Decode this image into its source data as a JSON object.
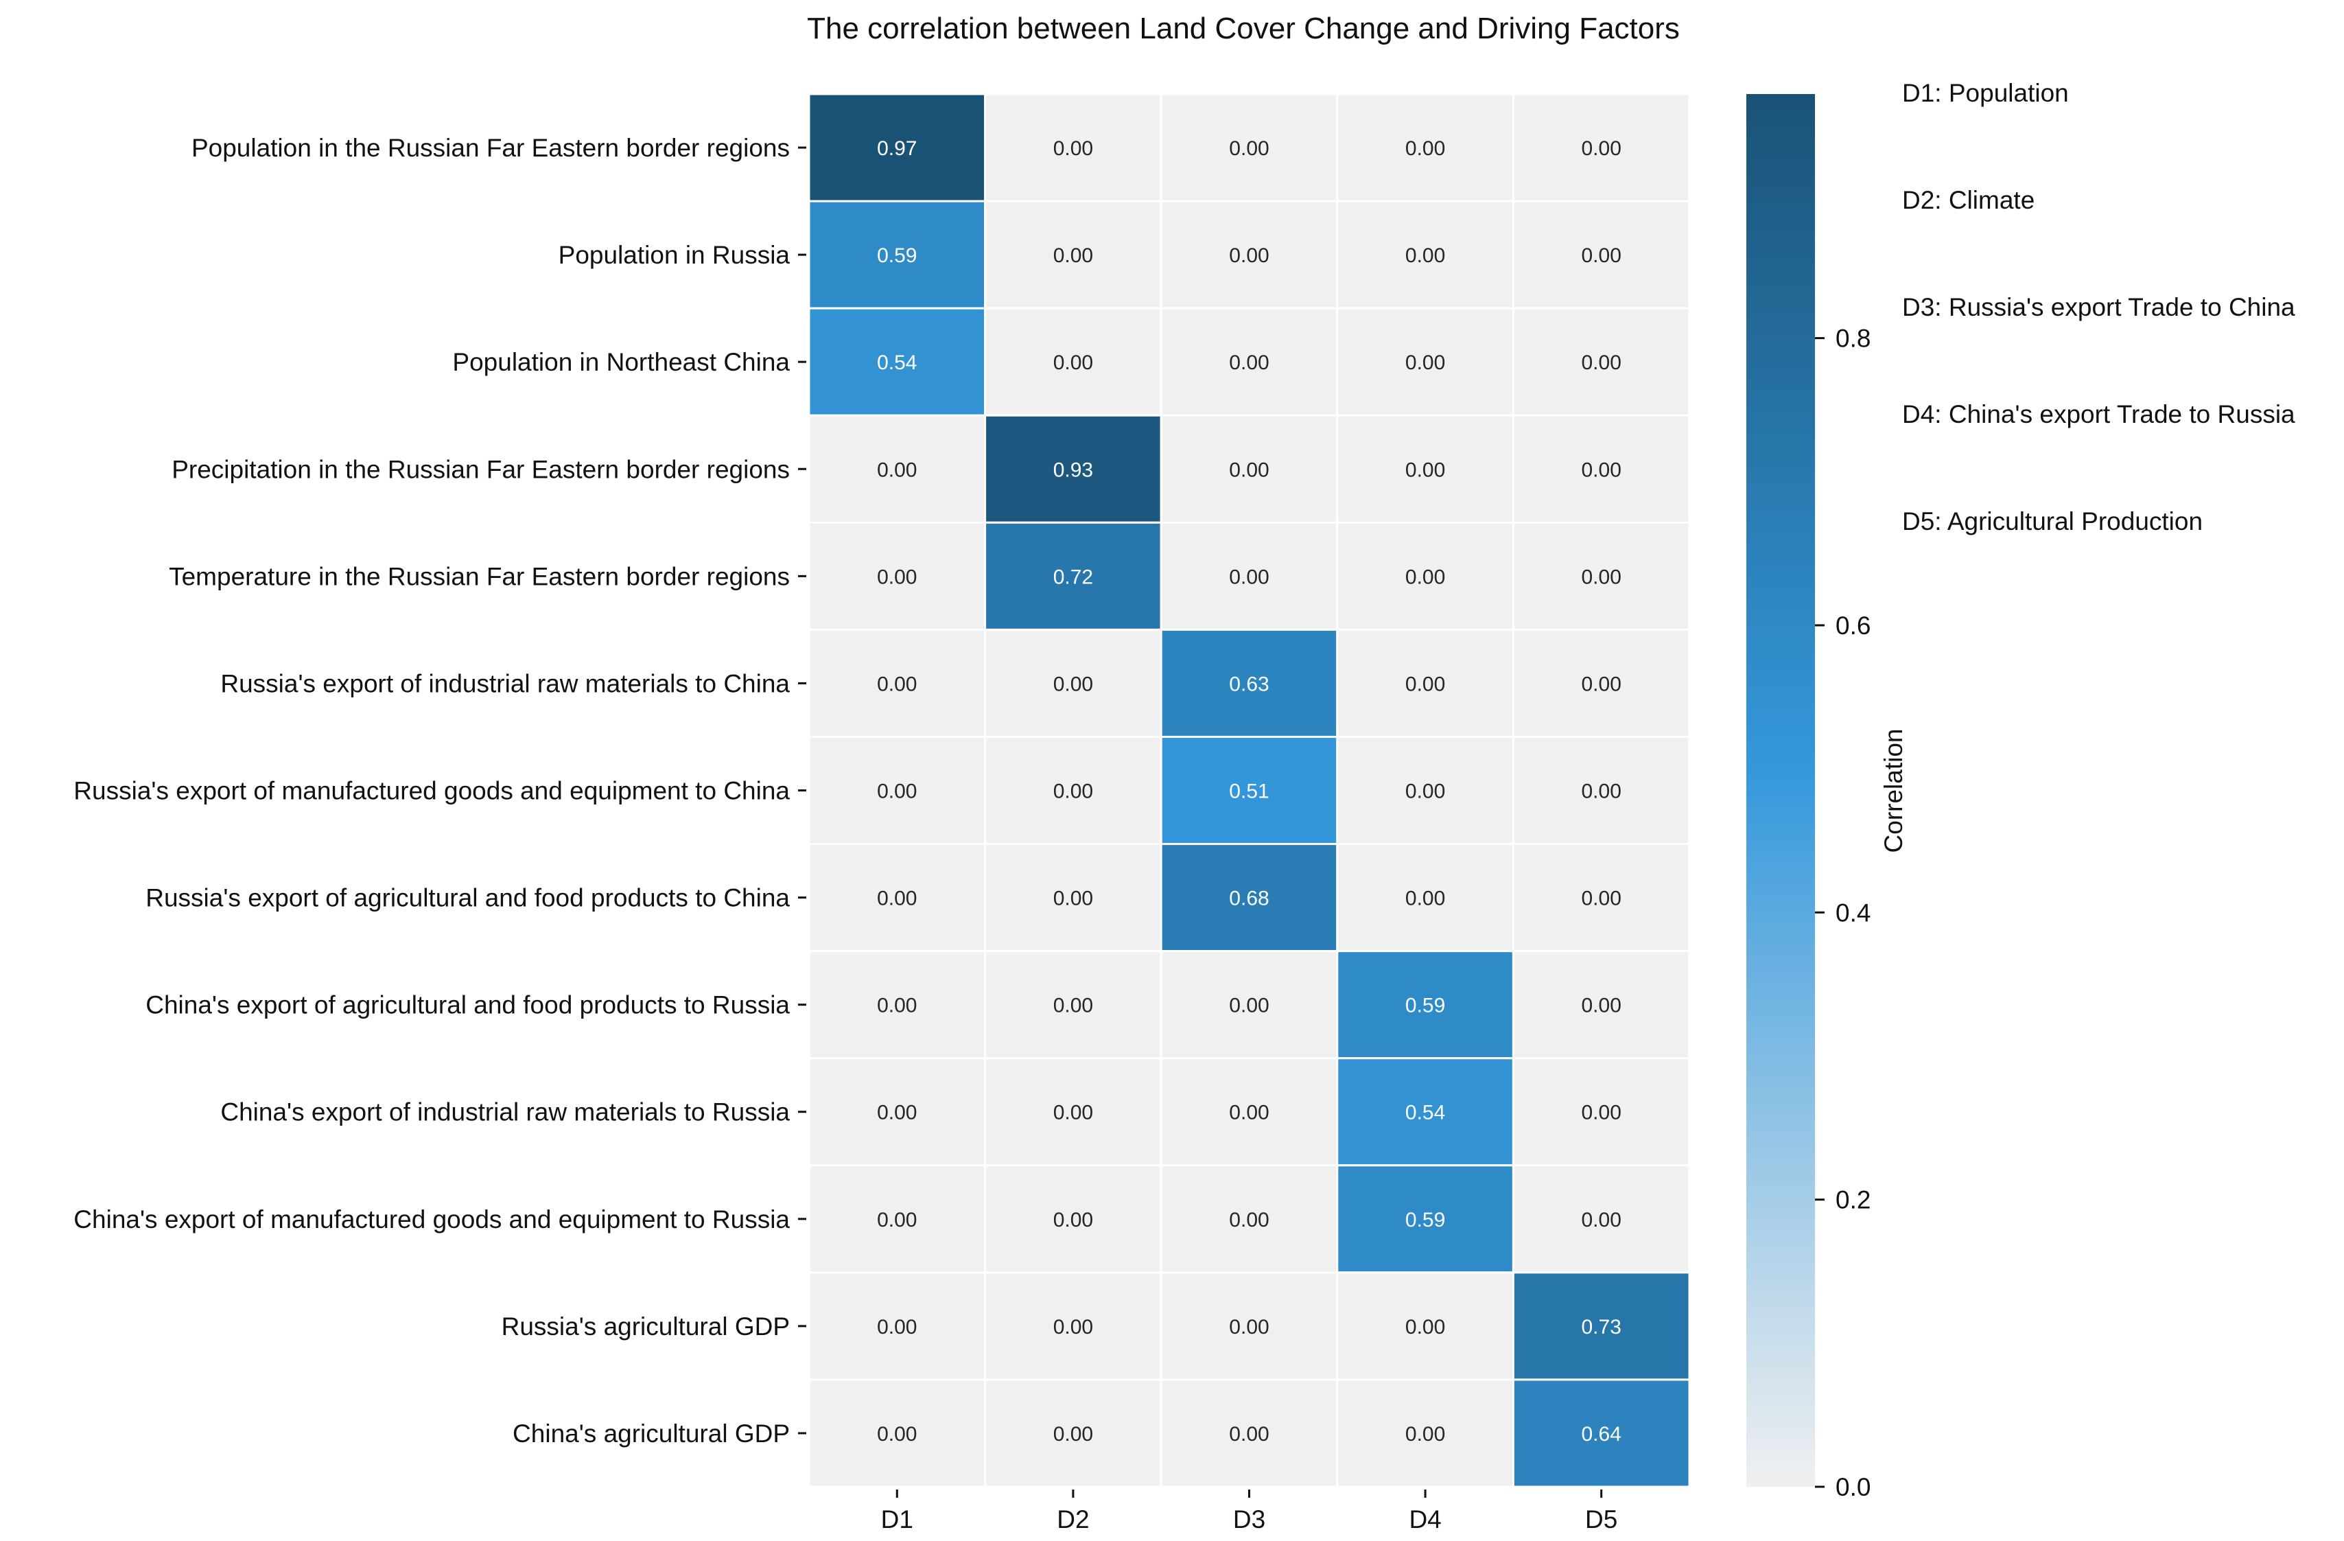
{
  "chart_data": {
    "type": "heatmap",
    "title": "The correlation between Land Cover Change and Driving Factors",
    "columns": [
      "D1",
      "D2",
      "D3",
      "D4",
      "D5"
    ],
    "rows": [
      "Population in the Russian Far Eastern border regions",
      "Population in Russia",
      "Population in Northeast China",
      "Precipitation in the Russian Far Eastern border regions",
      "Temperature in the Russian Far Eastern border regions",
      "Russia's export of industrial raw materials to China",
      "Russia's export of manufactured goods and equipment to China",
      "Russia's export of agricultural and food products to China",
      "China's export of agricultural and food products to Russia",
      "China's export of industrial raw materials to Russia",
      "China's export of manufactured goods and equipment to Russia",
      "Russia's agricultural GDP",
      "China's agricultural GDP"
    ],
    "values": [
      [
        0.97,
        0,
        0,
        0,
        0
      ],
      [
        0.59,
        0,
        0,
        0,
        0
      ],
      [
        0.54,
        0,
        0,
        0,
        0
      ],
      [
        0,
        0.93,
        0,
        0,
        0
      ],
      [
        0,
        0.72,
        0,
        0,
        0
      ],
      [
        0,
        0,
        0.63,
        0,
        0
      ],
      [
        0,
        0,
        0.51,
        0,
        0
      ],
      [
        0,
        0,
        0.68,
        0,
        0
      ],
      [
        0,
        0,
        0,
        0.59,
        0
      ],
      [
        0,
        0,
        0,
        0.54,
        0
      ],
      [
        0,
        0,
        0,
        0.59,
        0
      ],
      [
        0,
        0,
        0,
        0,
        0.73
      ],
      [
        0,
        0,
        0,
        0,
        0.64
      ]
    ],
    "value_format": "2 decimals",
    "colorbar": {
      "label": "Correlation",
      "range": [
        0,
        0.97
      ],
      "ticks": [
        "0.0",
        "0.2",
        "0.4",
        "0.6",
        "0.8"
      ],
      "colors": {
        "low": "#f0f0f0",
        "mid": "#3498db",
        "high": "#1a5276"
      }
    },
    "legend": [
      "D1: Population",
      "D2: Climate",
      "D3: Russia's export Trade to China",
      "D4: China's export Trade to Russia",
      "D5: Agricultural Production"
    ],
    "legend_placement": "right"
  }
}
